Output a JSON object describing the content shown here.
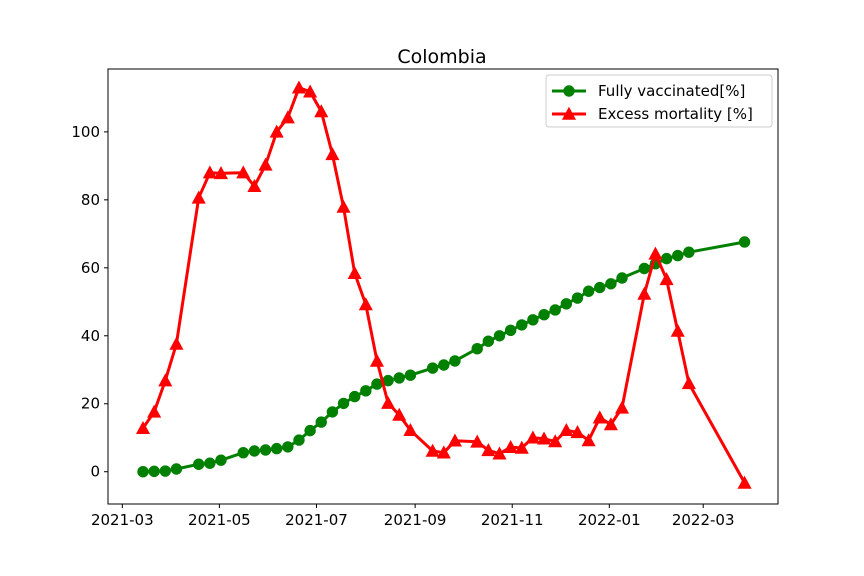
{
  "chart_data": {
    "type": "line",
    "title": "Colombia",
    "xlabel": "",
    "ylabel": "",
    "x_axis_type": "date",
    "xlim": [
      "2021-02-20",
      "2022-04-17"
    ],
    "ylim": [
      -9.5,
      118.5
    ],
    "x_ticks": [
      {
        "date": "2021-03-01",
        "label": "2021-03"
      },
      {
        "date": "2021-05-01",
        "label": "2021-05"
      },
      {
        "date": "2021-07-01",
        "label": "2021-07"
      },
      {
        "date": "2021-09-01",
        "label": "2021-09"
      },
      {
        "date": "2021-11-01",
        "label": "2021-11"
      },
      {
        "date": "2022-01-01",
        "label": "2022-01"
      },
      {
        "date": "2022-03-01",
        "label": "2022-03"
      }
    ],
    "y_ticks": [
      0,
      20,
      40,
      60,
      80,
      100
    ],
    "grid": false,
    "legend_position": "top-right",
    "series": [
      {
        "name": "Fully vaccinated[%]",
        "color": "#008000",
        "marker": "circle",
        "points": [
          [
            "2021-03-14",
            0.0
          ],
          [
            "2021-03-21",
            0.1
          ],
          [
            "2021-03-28",
            0.2
          ],
          [
            "2021-04-04",
            0.8
          ],
          [
            "2021-04-18",
            2.2
          ],
          [
            "2021-04-25",
            2.5
          ],
          [
            "2021-05-02",
            3.4
          ],
          [
            "2021-05-16",
            5.6
          ],
          [
            "2021-05-23",
            6.1
          ],
          [
            "2021-05-30",
            6.4
          ],
          [
            "2021-06-06",
            6.8
          ],
          [
            "2021-06-13",
            7.3
          ],
          [
            "2021-06-20",
            9.3
          ],
          [
            "2021-06-27",
            12.1
          ],
          [
            "2021-07-04",
            14.6
          ],
          [
            "2021-07-11",
            17.6
          ],
          [
            "2021-07-18",
            20.1
          ],
          [
            "2021-07-25",
            22.1
          ],
          [
            "2021-08-01",
            23.8
          ],
          [
            "2021-08-08",
            25.8
          ],
          [
            "2021-08-15",
            26.8
          ],
          [
            "2021-08-22",
            27.6
          ],
          [
            "2021-08-29",
            28.4
          ],
          [
            "2021-09-12",
            30.5
          ],
          [
            "2021-09-19",
            31.4
          ],
          [
            "2021-09-26",
            32.6
          ],
          [
            "2021-10-10",
            36.2
          ],
          [
            "2021-10-17",
            38.4
          ],
          [
            "2021-10-24",
            40.0
          ],
          [
            "2021-10-31",
            41.6
          ],
          [
            "2021-11-07",
            43.2
          ],
          [
            "2021-11-14",
            44.7
          ],
          [
            "2021-11-21",
            46.2
          ],
          [
            "2021-11-28",
            47.6
          ],
          [
            "2021-12-05",
            49.4
          ],
          [
            "2021-12-12",
            51.1
          ],
          [
            "2021-12-19",
            53.1
          ],
          [
            "2021-12-26",
            54.2
          ],
          [
            "2022-01-02",
            55.3
          ],
          [
            "2022-01-09",
            57.0
          ],
          [
            "2022-01-23",
            59.8
          ],
          [
            "2022-01-30",
            61.2
          ],
          [
            "2022-02-06",
            62.7
          ],
          [
            "2022-02-13",
            63.6
          ],
          [
            "2022-02-20",
            64.6
          ],
          [
            "2022-03-27",
            67.6
          ]
        ]
      },
      {
        "name": "Excess mortality [%]",
        "color": "#ff0000",
        "marker": "triangle",
        "points": [
          [
            "2021-03-14",
            12.8
          ],
          [
            "2021-03-21",
            17.6
          ],
          [
            "2021-03-28",
            26.8
          ],
          [
            "2021-04-04",
            37.6
          ],
          [
            "2021-04-18",
            80.6
          ],
          [
            "2021-04-25",
            88.0
          ],
          [
            "2021-05-02",
            87.8
          ],
          [
            "2021-05-16",
            88.0
          ],
          [
            "2021-05-23",
            84.0
          ],
          [
            "2021-05-30",
            90.3
          ],
          [
            "2021-06-06",
            100.0
          ],
          [
            "2021-06-13",
            104.2
          ],
          [
            "2021-06-20",
            113.0
          ],
          [
            "2021-06-27",
            111.8
          ],
          [
            "2021-07-04",
            106.0
          ],
          [
            "2021-07-11",
            93.4
          ],
          [
            "2021-07-18",
            77.9
          ],
          [
            "2021-07-25",
            58.4
          ],
          [
            "2021-08-01",
            49.2
          ],
          [
            "2021-08-08",
            32.6
          ],
          [
            "2021-08-15",
            20.2
          ],
          [
            "2021-08-22",
            16.7
          ],
          [
            "2021-08-29",
            12.2
          ],
          [
            "2021-09-12",
            6.1
          ],
          [
            "2021-09-19",
            5.6
          ],
          [
            "2021-09-26",
            9.1
          ],
          [
            "2021-10-10",
            8.8
          ],
          [
            "2021-10-17",
            6.3
          ],
          [
            "2021-10-24",
            5.3
          ],
          [
            "2021-10-31",
            7.2
          ],
          [
            "2021-11-07",
            7.0
          ],
          [
            "2021-11-14",
            10.0
          ],
          [
            "2021-11-21",
            9.7
          ],
          [
            "2021-11-28",
            8.9
          ],
          [
            "2021-12-05",
            12.2
          ],
          [
            "2021-12-12",
            11.6
          ],
          [
            "2021-12-19",
            9.2
          ],
          [
            "2021-12-26",
            15.9
          ],
          [
            "2022-01-02",
            13.9
          ],
          [
            "2022-01-09",
            18.8
          ],
          [
            "2022-01-23",
            52.3
          ],
          [
            "2022-01-30",
            64.1
          ],
          [
            "2022-02-06",
            56.6
          ],
          [
            "2022-02-13",
            41.4
          ],
          [
            "2022-02-20",
            26.0
          ],
          [
            "2022-03-27",
            -3.3
          ]
        ]
      }
    ]
  }
}
